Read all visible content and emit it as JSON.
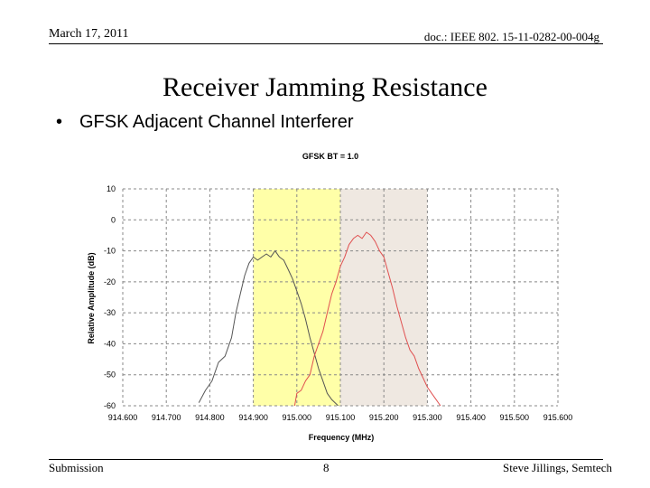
{
  "header": {
    "date": "March 17, 2011",
    "doc_id": "doc.: IEEE 802. 15-11-0282-00-004g"
  },
  "slide": {
    "title": "Receiver Jamming Resistance",
    "bullet": "GFSK Adjacent Channel Interferer",
    "bullet_symbol": "•"
  },
  "footer": {
    "left": "Submission",
    "page": "8",
    "right": "Steve Jillings, Semtech"
  },
  "colors": {
    "desired_band": "#ffff99",
    "adjacent_band": "#ece4dc",
    "series_desired": "#555555",
    "series_adjacent": "#e05050",
    "grid": "#888888"
  },
  "chart_data": {
    "type": "line",
    "title": "GFSK BT = 1.0",
    "xlabel": "Frequency (MHz)",
    "ylabel": "Relative Amplitude (dB)",
    "xlim": [
      914.6,
      915.6
    ],
    "ylim": [
      -60,
      10
    ],
    "x_ticks": [
      "914.600",
      "914.700",
      "914.800",
      "914.900",
      "915.000",
      "915.100",
      "915.200",
      "915.300",
      "915.400",
      "915.500",
      "915.600"
    ],
    "y_ticks": [
      "10",
      "0",
      "-10",
      "-20",
      "-30",
      "-40",
      "-50",
      "-60"
    ],
    "grid": true,
    "bands": [
      {
        "x0": 914.9,
        "x1": 915.1,
        "color_key": "desired_band"
      },
      {
        "x0": 915.1,
        "x1": 915.3,
        "color_key": "adjacent_band"
      }
    ],
    "series": [
      {
        "color_key": "series_desired",
        "x": [
          914.775,
          914.79,
          914.805,
          914.82,
          914.835,
          914.85,
          914.86,
          914.87,
          914.88,
          914.89,
          914.9,
          914.91,
          914.92,
          914.93,
          914.94,
          914.95,
          914.96,
          914.97,
          914.98,
          914.99,
          915.0,
          915.01,
          915.02,
          915.03,
          915.04,
          915.05,
          915.06,
          915.07,
          915.08,
          915.095
        ],
        "y": [
          -59,
          -55,
          -52,
          -46,
          -44,
          -38,
          -30,
          -24,
          -18,
          -14,
          -12,
          -13,
          -12,
          -11,
          -12,
          -10,
          -12,
          -13,
          -16,
          -19,
          -23,
          -27,
          -32,
          -38,
          -43,
          -48,
          -52,
          -56,
          -58,
          -60
        ]
      },
      {
        "color_key": "series_adjacent",
        "x": [
          914.995,
          915.0,
          915.01,
          915.02,
          915.03,
          915.04,
          915.05,
          915.06,
          915.07,
          915.08,
          915.09,
          915.1,
          915.11,
          915.12,
          915.13,
          915.14,
          915.15,
          915.16,
          915.17,
          915.18,
          915.19,
          915.2,
          915.21,
          915.22,
          915.23,
          915.24,
          915.25,
          915.26,
          915.27,
          915.28,
          915.29,
          915.3,
          915.31,
          915.32,
          915.33
        ],
        "y": [
          -60,
          -56,
          -55,
          -52,
          -50,
          -44,
          -40,
          -36,
          -30,
          -24,
          -20,
          -15,
          -12,
          -8,
          -6,
          -5,
          -6,
          -4,
          -5,
          -7,
          -10,
          -12,
          -17,
          -22,
          -28,
          -33,
          -38,
          -42,
          -44,
          -48,
          -51,
          -54,
          -56,
          -58,
          -60
        ]
      }
    ]
  }
}
